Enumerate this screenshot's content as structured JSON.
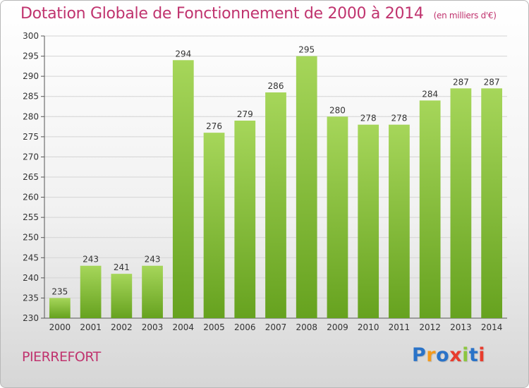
{
  "header": {
    "title": "Dotation Globale de Fonctionnement de 2000 à 2014",
    "unit": "(en milliers d'€)"
  },
  "footer": {
    "town": "PIERREFORT",
    "logo": "Proxiti",
    "logo_colors": [
      "#2a73c8",
      "#f39a1d",
      "#2a73c8",
      "#e83c2d",
      "#8cc63f",
      "#2a73c8",
      "#e83c2d"
    ]
  },
  "chart_data": {
    "type": "bar",
    "title": "Dotation Globale de Fonctionnement de 2000 à 2014",
    "subtitle": "(en milliers d'€)",
    "categories": [
      "2000",
      "2001",
      "2002",
      "2003",
      "2004",
      "2005",
      "2006",
      "2007",
      "2008",
      "2009",
      "2010",
      "2011",
      "2012",
      "2013",
      "2014"
    ],
    "values": [
      235,
      243,
      241,
      243,
      294,
      276,
      279,
      286,
      295,
      280,
      278,
      278,
      284,
      287,
      287
    ],
    "ylim": [
      230,
      300
    ],
    "yticks": [
      230,
      235,
      240,
      245,
      250,
      255,
      260,
      265,
      270,
      275,
      280,
      285,
      290,
      295,
      300
    ],
    "grid": true,
    "bar_color_top": "#a6d65a",
    "bar_color_bottom": "#66a21f",
    "legend": "none"
  }
}
